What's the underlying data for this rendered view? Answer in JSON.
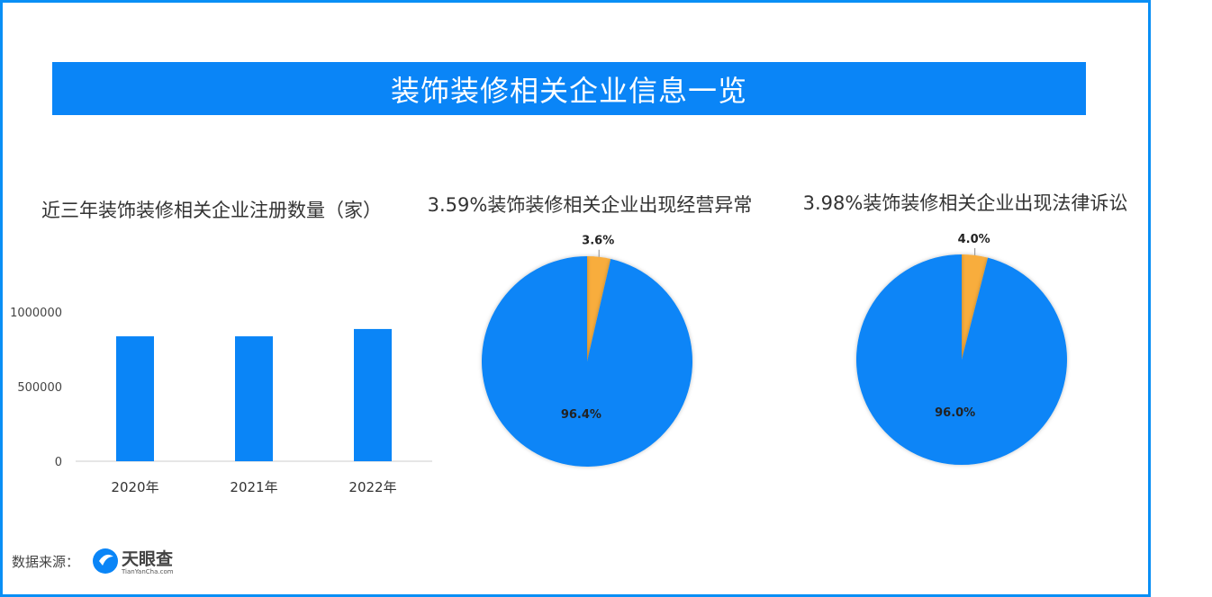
{
  "banner": {
    "title": "装饰装修相关企业信息一览"
  },
  "chart_data": [
    {
      "type": "bar",
      "title": "近三年装饰装修相关企业注册数量（家）",
      "categories": [
        "2020年",
        "2021年",
        "2022年"
      ],
      "values": [
        837000,
        837000,
        886000
      ],
      "yticks": [
        "0",
        "500000",
        "1000000"
      ],
      "ylim": [
        0,
        1000000
      ],
      "grid": false,
      "color": "#0a85f7"
    },
    {
      "type": "pie",
      "title": "3.59%装饰装修相关企业出现经营异常",
      "slices": [
        {
          "label": "3.6%",
          "value": 3.6,
          "color": "#f8ad3c"
        },
        {
          "label": "96.4%",
          "value": 96.4,
          "color": "#0a85f7"
        }
      ]
    },
    {
      "type": "pie",
      "title": "3.98%装饰装修相关企业出现法律诉讼",
      "slices": [
        {
          "label": "4.0%",
          "value": 4.0,
          "color": "#f8ad3c"
        },
        {
          "label": "96.0%",
          "value": 96.0,
          "color": "#0a85f7"
        }
      ]
    }
  ],
  "footer": {
    "source_label": "数据来源：",
    "logo_text": "天眼查",
    "logo_sub": "TianYanCha.com"
  }
}
